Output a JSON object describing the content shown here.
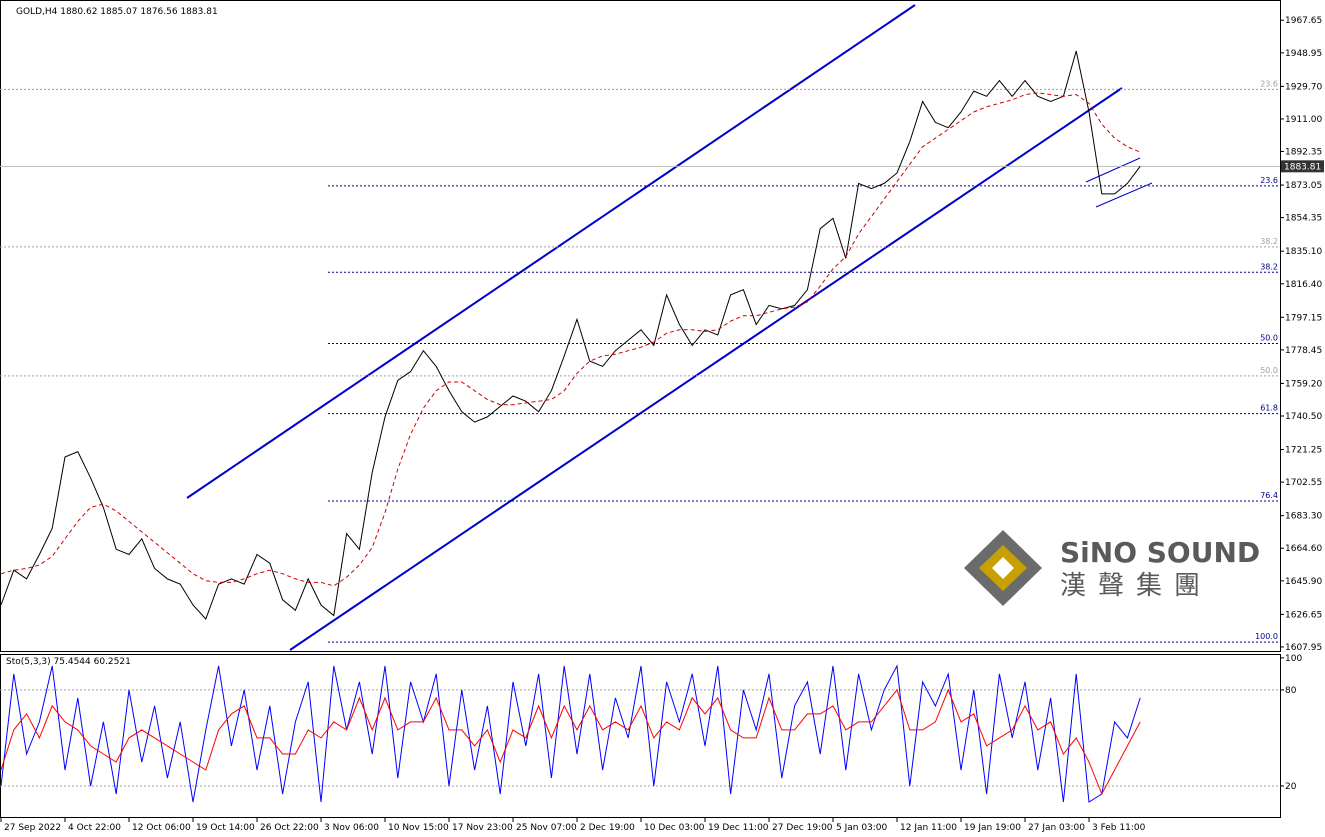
{
  "chart_data": [
    {
      "type": "line",
      "title": "GOLD,H4  1880.62 1885.07 1876.56 1883.81",
      "categories": [
        "27 Sep 2022",
        null,
        null,
        null,
        null,
        "4 Oct 22:00",
        null,
        null,
        null,
        null,
        "12 Oct 06:00",
        null,
        null,
        null,
        null,
        "19 Oct 14:00",
        null,
        null,
        null,
        null,
        "26 Oct 22:00",
        null,
        null,
        null,
        null,
        "3 Nov 06:00",
        null,
        null,
        null,
        null,
        "10 Nov 15:00",
        null,
        null,
        null,
        null,
        "17 Nov 23:00",
        null,
        null,
        null,
        null,
        "25 Nov 07:00",
        null,
        null,
        null,
        null,
        "2 Dec 19:00",
        null,
        null,
        null,
        null,
        "10 Dec 03:00",
        null,
        null,
        null,
        null,
        "19 Dec 11:00",
        null,
        null,
        null,
        null,
        "27 Dec 19:00",
        null,
        null,
        null,
        null,
        "5 Jan 03:00",
        null,
        null,
        null,
        null,
        "12 Jan 11:00",
        null,
        null,
        null,
        null,
        "19 Jan 19:00",
        null,
        null,
        null,
        null,
        "27 Jan 03:00",
        null,
        null,
        null,
        null,
        "3 Feb 11:00",
        null,
        null,
        null,
        null
      ],
      "series": [
        {
          "color": "#000000",
          "values": [
            1632,
            1652,
            1647,
            1661,
            1676,
            1717,
            1720,
            1705,
            1688,
            1664,
            1661,
            1670,
            1653,
            1647,
            1644,
            1632,
            1624,
            1644,
            1647,
            1644,
            1661,
            1656,
            1635,
            1629,
            1647,
            1632,
            1626,
            1673,
            1664,
            1708,
            1740,
            1761,
            1766,
            1778,
            1769,
            1755,
            1743,
            1737,
            1740,
            1746,
            1752,
            1749,
            1743,
            1755,
            1775,
            1796,
            1772,
            1769,
            1778,
            1784,
            1790,
            1781,
            1810,
            1793,
            1781,
            1790,
            1787,
            1810,
            1813,
            1793,
            1804,
            1802,
            1804,
            1813,
            1848,
            1854,
            1831,
            1874,
            1871,
            1874,
            1880,
            1898,
            1921,
            1909,
            1906,
            1915,
            1927,
            1924,
            1933,
            1924,
            1933,
            1924,
            1921,
            1924,
            1950,
            1915,
            1868,
            1868,
            1874,
            1883.81
          ]
        },
        {
          "color": "#cc0000",
          "values": [
            1650,
            1652,
            1653,
            1655,
            1660,
            1670,
            1680,
            1688,
            1690,
            1686,
            1680,
            1674,
            1668,
            1662,
            1656,
            1650,
            1646,
            1645,
            1645,
            1647,
            1650,
            1652,
            1650,
            1647,
            1645,
            1645,
            1643,
            1648,
            1655,
            1665,
            1685,
            1710,
            1730,
            1745,
            1755,
            1760,
            1760,
            1755,
            1750,
            1747,
            1747,
            1748,
            1749,
            1750,
            1755,
            1765,
            1772,
            1775,
            1776,
            1778,
            1780,
            1783,
            1788,
            1790,
            1790,
            1789,
            1790,
            1795,
            1798,
            1798,
            1800,
            1802,
            1803,
            1806,
            1815,
            1825,
            1832,
            1845,
            1855,
            1865,
            1875,
            1885,
            1895,
            1900,
            1905,
            1910,
            1915,
            1918,
            1920,
            1922,
            1925,
            1926,
            1925,
            1924,
            1925,
            1920,
            1908,
            1900,
            1895,
            1892
          ]
        }
      ],
      "last": 1883.81,
      "levels": [
        {
          "label": "23.6",
          "value": 1928.0,
          "color": "#a0a0a0"
        },
        {
          "label": "23.6",
          "value": 1872.6,
          "color": "#00008b"
        },
        {
          "label": "38.2",
          "value": 1837.6,
          "color": "#a0a0a0"
        },
        {
          "label": "38.2",
          "value": 1823.0,
          "color": "#00008b"
        },
        {
          "label": "50.0",
          "value": 1782.1,
          "color": "#00008b"
        },
        {
          "label": "50.0",
          "value": 1763.5,
          "color": "#a0a0a0"
        },
        {
          "label": "61.8",
          "value": 1741.9,
          "color": "#00008b"
        },
        {
          "label": "76.4",
          "value": 1691.7,
          "color": "#00008b"
        },
        {
          "label": "100.0",
          "value": 1610.7,
          "color": "#00008b"
        }
      ],
      "ylim": [
        1606.2,
        1976.4
      ],
      "yticks": [
        1967.65,
        1948.95,
        {
          "value": 1929.7,
          "label": "1929.70"
        },
        {
          "value": 1911,
          "label": "1911.00"
        },
        1892.35,
        1873.05,
        1854.35,
        {
          "value": 1835.1,
          "label": "1835.10"
        },
        {
          "value": 1816.4,
          "label": "1816.40"
        },
        1797.15,
        1778.45,
        {
          "value": 1759.2,
          "label": "1759.20"
        },
        {
          "value": 1740.5,
          "label": "1740.50"
        },
        1721.25,
        1702.55,
        {
          "value": 1683.3,
          "label": "1683.30"
        },
        {
          "value": 1664.6,
          "label": "1664.60"
        },
        {
          "value": 1645.9,
          "label": "1645.90"
        },
        1626.65,
        1607.95
      ],
      "grid": false
    },
    {
      "type": "line",
      "title": "Sto(5,3,3) 75.4544 60.2521",
      "series": [
        {
          "color": "#0000ff",
          "values": [
            20,
            90,
            40,
            60,
            95,
            30,
            75,
            20,
            60,
            15,
            80,
            35,
            70,
            25,
            60,
            10,
            55,
            95,
            45,
            80,
            30,
            70,
            15,
            60,
            85,
            10,
            95,
            55,
            85,
            40,
            95,
            25,
            85,
            60,
            90,
            20,
            80,
            30,
            70,
            15,
            85,
            45,
            90,
            25,
            95,
            40,
            90,
            30,
            75,
            50,
            95,
            20,
            85,
            60,
            90,
            45,
            95,
            15,
            80,
            55,
            90,
            25,
            70,
            85,
            40,
            95,
            30,
            90,
            55,
            80,
            95,
            20,
            85,
            70,
            90,
            30,
            80,
            15,
            90,
            50,
            85,
            30,
            75,
            10,
            90,
            10,
            15,
            60,
            50,
            75
          ]
        },
        {
          "color": "#ff0000",
          "values": [
            30,
            55,
            65,
            50,
            70,
            60,
            55,
            45,
            40,
            35,
            50,
            55,
            50,
            45,
            40,
            35,
            30,
            55,
            65,
            70,
            50,
            50,
            40,
            40,
            55,
            50,
            60,
            55,
            75,
            55,
            75,
            55,
            60,
            60,
            75,
            55,
            55,
            45,
            55,
            35,
            55,
            50,
            70,
            50,
            70,
            55,
            70,
            55,
            60,
            55,
            70,
            50,
            60,
            55,
            75,
            65,
            75,
            55,
            50,
            50,
            75,
            55,
            55,
            65,
            65,
            70,
            55,
            60,
            60,
            70,
            80,
            55,
            55,
            60,
            80,
            60,
            65,
            45,
            50,
            55,
            70,
            55,
            60,
            40,
            50,
            35,
            15,
            30,
            45,
            60
          ]
        }
      ],
      "levels": [
        80,
        20
      ],
      "ylim": [
        0,
        101.8
      ],
      "yticks": [
        100,
        80,
        20
      ]
    }
  ],
  "watermark": {
    "name": "SiNO SOUND",
    "chinese": "漢聲集團"
  }
}
